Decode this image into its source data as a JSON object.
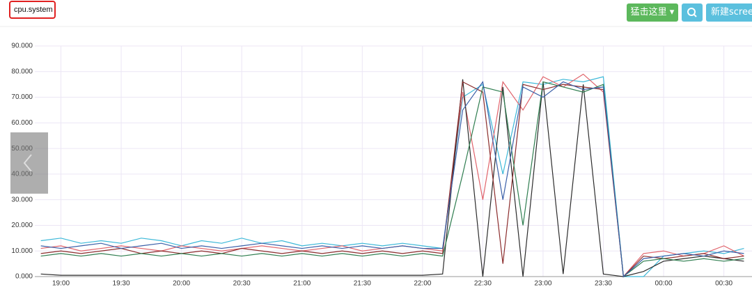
{
  "toolbar": {
    "button": "猛击这里",
    "new_screen": "新建screen"
  },
  "chart_data": {
    "type": "line",
    "title": "cpu.system",
    "x": [
      "18:50",
      "19:00",
      "19:10",
      "19:20",
      "19:30",
      "19:40",
      "19:50",
      "20:00",
      "20:10",
      "20:20",
      "20:30",
      "20:40",
      "20:50",
      "21:00",
      "21:10",
      "21:20",
      "21:30",
      "21:40",
      "21:50",
      "22:00",
      "22:10",
      "22:20",
      "22:30",
      "22:40",
      "22:50",
      "23:00",
      "23:10",
      "23:20",
      "23:30",
      "23:40",
      "23:50",
      "00:00",
      "00:10",
      "00:20",
      "00:30",
      "00:40"
    ],
    "xlim": [
      "18:47",
      "00:44"
    ],
    "xticks": [
      "19:00",
      "19:30",
      "20:00",
      "20:30",
      "21:00",
      "21:30",
      "22:00",
      "22:30",
      "23:00",
      "23:30",
      "00:00",
      "00:30"
    ],
    "ylim": [
      0,
      90
    ],
    "yticks": [
      {
        "value": 0,
        "label": "0.000"
      },
      {
        "value": 10,
        "label": "10.000"
      },
      {
        "value": 20,
        "label": "20.000"
      },
      {
        "value": 30,
        "label": "30.000"
      },
      {
        "value": 40,
        "label": "40.000"
      },
      {
        "value": 50,
        "label": "50.000"
      },
      {
        "value": 60,
        "label": "60.000"
      },
      {
        "value": 70,
        "label": "70.000"
      },
      {
        "value": 80,
        "label": "80.000"
      },
      {
        "value": 90,
        "label": "90.000"
      }
    ],
    "grid": true,
    "series": [
      {
        "color": "#3bb8d8",
        "values": [
          14,
          15,
          13,
          14,
          13,
          15,
          14,
          12,
          14,
          13,
          15,
          13,
          14,
          12,
          13,
          12,
          13,
          12,
          13,
          12,
          11,
          70,
          75,
          40,
          76,
          75,
          77,
          76,
          78,
          0,
          0,
          8,
          9,
          10,
          9,
          11
        ]
      },
      {
        "color": "#e0636b",
        "values": [
          11,
          12,
          10,
          11,
          12,
          11,
          10,
          12,
          11,
          10,
          11,
          12,
          11,
          10,
          11,
          12,
          10,
          11,
          12,
          11,
          10,
          72,
          30,
          76,
          65,
          78,
          74,
          79,
          72,
          0,
          9,
          10,
          8,
          9,
          12,
          8
        ]
      },
      {
        "color": "#2b2b2b",
        "values": [
          1,
          0.5,
          0.5,
          0.5,
          0.5,
          0.5,
          0.5,
          0.5,
          0.5,
          0.5,
          0.5,
          0.5,
          0.5,
          0.5,
          0.5,
          0.5,
          0.5,
          0.5,
          0.5,
          0.5,
          1,
          77,
          0,
          74,
          0,
          76,
          1,
          75,
          1,
          0,
          2,
          6,
          7,
          8,
          7,
          6
        ]
      },
      {
        "color": "#8b2c2c",
        "values": [
          9,
          10,
          9,
          10,
          11,
          9,
          10,
          9,
          10,
          9,
          11,
          10,
          9,
          10,
          9,
          10,
          9,
          10,
          9,
          10,
          9,
          76,
          72,
          5,
          75,
          73,
          75,
          74,
          73,
          0,
          8,
          7,
          8,
          9,
          7,
          8
        ]
      },
      {
        "color": "#2e7d4f",
        "values": [
          8,
          9,
          8,
          9,
          8,
          9,
          8,
          9,
          8,
          9,
          8,
          9,
          8,
          9,
          8,
          9,
          8,
          9,
          8,
          9,
          8,
          40,
          74,
          72,
          20,
          76,
          74,
          72,
          75,
          0,
          6,
          7,
          6,
          7,
          6,
          7
        ]
      },
      {
        "color": "#3a5fa8",
        "values": [
          12,
          11,
          12,
          13,
          11,
          12,
          13,
          11,
          12,
          11,
          12,
          13,
          12,
          11,
          12,
          11,
          12,
          11,
          12,
          11,
          11,
          65,
          76,
          30,
          74,
          70,
          76,
          73,
          74,
          0,
          7,
          8,
          9,
          8,
          10,
          9
        ]
      }
    ]
  }
}
